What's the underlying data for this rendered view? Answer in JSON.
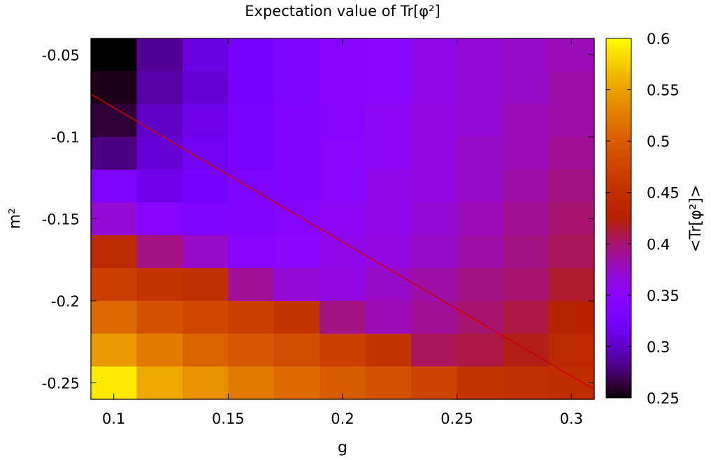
{
  "chart_data": {
    "type": "heatmap",
    "title": "Expectation value of Tr[φ²]",
    "xlabel": "g",
    "ylabel": "m²",
    "colorbar_label": "<Tr[φ²]>",
    "x_ticks": [
      "0.1",
      "0.15",
      "0.2",
      "0.25",
      "0.3"
    ],
    "y_ticks": [
      "-0.05",
      "-0.1",
      "-0.15",
      "-0.2",
      "-0.25"
    ],
    "colorbar_ticks": [
      "0.25",
      "0.3",
      "0.35",
      "0.4",
      "0.45",
      "0.5",
      "0.55",
      "0.6"
    ],
    "xlim": [
      0.09,
      0.31
    ],
    "ylim": [
      -0.26,
      -0.04
    ],
    "color_range": [
      0.25,
      0.6
    ],
    "colormap": "gnuplot-rgbformulae-7-5-15",
    "g_values": [
      0.1,
      0.12,
      0.14,
      0.16,
      0.18,
      0.2,
      0.22,
      0.24,
      0.26,
      0.28,
      0.3
    ],
    "m2_values": [
      -0.05,
      -0.07,
      -0.09,
      -0.11,
      -0.13,
      -0.15,
      -0.17,
      -0.19,
      -0.21,
      -0.23,
      -0.25
    ],
    "values": [
      [
        0.25,
        0.285,
        0.31,
        0.325,
        0.335,
        0.345,
        0.35,
        0.36,
        0.37,
        0.375,
        0.38
      ],
      [
        0.255,
        0.29,
        0.305,
        0.325,
        0.335,
        0.345,
        0.35,
        0.36,
        0.37,
        0.375,
        0.385
      ],
      [
        0.262,
        0.3,
        0.315,
        0.33,
        0.34,
        0.345,
        0.355,
        0.365,
        0.37,
        0.38,
        0.385
      ],
      [
        0.28,
        0.305,
        0.32,
        0.33,
        0.34,
        0.35,
        0.355,
        0.365,
        0.375,
        0.38,
        0.39
      ],
      [
        0.335,
        0.315,
        0.325,
        0.335,
        0.34,
        0.35,
        0.36,
        0.365,
        0.375,
        0.385,
        0.395
      ],
      [
        0.37,
        0.345,
        0.335,
        0.34,
        0.345,
        0.355,
        0.36,
        0.37,
        0.38,
        0.39,
        0.4
      ],
      [
        0.44,
        0.395,
        0.375,
        0.345,
        0.35,
        0.36,
        0.365,
        0.375,
        0.385,
        0.395,
        0.405
      ],
      [
        0.47,
        0.455,
        0.45,
        0.39,
        0.37,
        0.365,
        0.375,
        0.385,
        0.395,
        0.4,
        0.415
      ],
      [
        0.51,
        0.49,
        0.48,
        0.47,
        0.455,
        0.395,
        0.38,
        0.39,
        0.4,
        0.41,
        0.43
      ],
      [
        0.545,
        0.525,
        0.505,
        0.495,
        0.485,
        0.47,
        0.455,
        0.405,
        0.41,
        0.42,
        0.44
      ],
      [
        0.59,
        0.555,
        0.54,
        0.525,
        0.51,
        0.5,
        0.49,
        0.475,
        0.455,
        0.45,
        0.445
      ]
    ],
    "line": {
      "color": "#cc0000",
      "points": [
        [
          0.09,
          -0.074
        ],
        [
          0.31,
          -0.254
        ]
      ]
    },
    "grid": false
  }
}
